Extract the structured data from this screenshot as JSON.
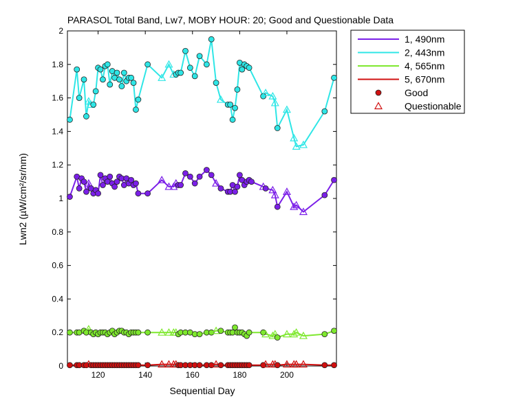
{
  "chart_data": {
    "type": "line",
    "title": "PARASOL Total Band, Lw7, MOBY HOUR: 20;  Good and Questionable Data",
    "xlabel": "Sequential Day",
    "ylabel": "Lwn2 (µW/cm²/sr/nm)",
    "xlim": [
      107,
      221
    ],
    "ylim": [
      0,
      2
    ],
    "xticks": [
      120,
      140,
      160,
      180,
      200
    ],
    "yticks": [
      0,
      0.2,
      0.4,
      0.6,
      0.8,
      1,
      1.2,
      1.4,
      1.6,
      1.8,
      2
    ],
    "grid": false,
    "legend_position": "outside-top-right",
    "legend": {
      "good_label": "Good",
      "questionable_label": "Questionable"
    },
    "series": [
      {
        "name": "1, 490nm",
        "color": "#7b1fe8",
        "x": [
          108,
          111,
          112,
          113,
          114,
          115,
          116,
          117,
          118,
          119,
          120,
          121,
          122,
          123,
          124,
          125,
          126,
          127,
          128,
          129,
          130,
          131,
          132,
          133,
          134,
          135,
          136,
          137,
          141,
          147,
          150,
          152,
          153,
          154,
          155,
          157,
          159,
          161,
          163,
          166,
          168,
          170,
          172,
          175,
          176,
          177,
          178,
          179,
          180,
          181,
          182,
          183,
          184,
          185,
          190,
          191,
          194,
          195,
          196,
          200,
          203,
          204,
          207,
          216,
          220
        ],
        "y": [
          1.01,
          1.13,
          1.06,
          1.12,
          1.1,
          1.04,
          1.09,
          1.06,
          1.03,
          1.05,
          1.03,
          1.14,
          1.08,
          1.12,
          1.1,
          1.13,
          1.09,
          1.07,
          1.1,
          1.13,
          1.12,
          1.08,
          1.12,
          1.09,
          1.11,
          1.08,
          1.09,
          1.03,
          1.03,
          1.11,
          1.07,
          1.07,
          1.09,
          1.08,
          1.08,
          1.15,
          1.13,
          1.09,
          1.13,
          1.17,
          1.14,
          1.09,
          1.06,
          1.04,
          1.04,
          1.08,
          1.04,
          1.07,
          1.14,
          1.11,
          1.08,
          1.1,
          1.11,
          1.1,
          1.07,
          1.06,
          1.05,
          1.02,
          0.95,
          1.04,
          0.95,
          0.96,
          0.92,
          1.02,
          1.11
        ],
        "q": [
          0,
          0,
          0,
          0,
          0,
          0,
          1,
          0,
          0,
          0,
          0,
          0,
          0,
          0,
          0,
          0,
          0,
          0,
          0,
          0,
          0,
          0,
          0,
          0,
          0,
          0,
          0,
          0,
          0,
          1,
          1,
          1,
          1,
          0,
          0,
          0,
          0,
          0,
          0,
          0,
          0,
          1,
          0,
          0,
          0,
          0,
          0,
          0,
          0,
          0,
          0,
          0,
          0,
          0,
          1,
          0,
          1,
          1,
          0,
          1,
          1,
          1,
          1,
          0,
          0
        ]
      },
      {
        "name": "2, 443nm",
        "color": "#2ee6e6",
        "x": [
          108,
          111,
          112,
          114,
          115,
          116,
          117,
          118,
          119,
          120,
          121,
          122,
          123,
          124,
          125,
          126,
          127,
          128,
          129,
          130,
          131,
          132,
          133,
          134,
          135,
          136,
          137,
          141,
          147,
          150,
          152,
          153,
          154,
          155,
          157,
          159,
          161,
          163,
          166,
          168,
          170,
          172,
          175,
          176,
          177,
          178,
          179,
          180,
          181,
          182,
          183,
          184,
          190,
          191,
          194,
          195,
          196,
          200,
          203,
          204,
          207,
          216,
          220
        ],
        "y": [
          1.47,
          1.77,
          1.6,
          1.71,
          1.49,
          1.58,
          1.56,
          1.56,
          1.64,
          1.78,
          1.77,
          1.71,
          1.79,
          1.8,
          1.68,
          1.76,
          1.72,
          1.75,
          1.71,
          1.67,
          1.75,
          1.7,
          1.72,
          1.72,
          1.69,
          1.53,
          1.59,
          1.8,
          1.72,
          1.8,
          1.74,
          1.74,
          1.75,
          1.75,
          1.88,
          1.78,
          1.73,
          1.85,
          1.8,
          1.95,
          1.69,
          1.59,
          1.56,
          1.56,
          1.47,
          1.54,
          1.65,
          1.81,
          1.77,
          1.8,
          1.79,
          1.78,
          1.61,
          1.63,
          1.61,
          1.57,
          1.42,
          1.53,
          1.36,
          1.31,
          1.32,
          1.52,
          1.72
        ],
        "q": [
          0,
          0,
          0,
          0,
          0,
          1,
          1,
          0,
          0,
          0,
          0,
          0,
          0,
          0,
          0,
          0,
          0,
          0,
          0,
          0,
          0,
          0,
          0,
          0,
          0,
          0,
          0,
          0,
          1,
          1,
          1,
          0,
          0,
          0,
          0,
          0,
          0,
          0,
          0,
          0,
          0,
          1,
          0,
          0,
          0,
          0,
          0,
          0,
          0,
          0,
          0,
          0,
          0,
          1,
          1,
          1,
          0,
          1,
          1,
          1,
          1,
          0,
          0
        ]
      },
      {
        "name": "4, 565nm",
        "color": "#7ee82e",
        "x": [
          108,
          111,
          112,
          114,
          115,
          116,
          117,
          118,
          119,
          120,
          121,
          122,
          123,
          124,
          125,
          126,
          127,
          128,
          129,
          130,
          131,
          132,
          133,
          134,
          135,
          136,
          137,
          141,
          147,
          150,
          152,
          153,
          154,
          155,
          157,
          159,
          161,
          163,
          166,
          168,
          170,
          172,
          175,
          176,
          177,
          178,
          179,
          180,
          181,
          182,
          183,
          184,
          190,
          191,
          194,
          195,
          196,
          200,
          203,
          204,
          207,
          216,
          220
        ],
        "y": [
          0.2,
          0.2,
          0.2,
          0.21,
          0.2,
          0.22,
          0.2,
          0.19,
          0.2,
          0.19,
          0.2,
          0.2,
          0.2,
          0.19,
          0.2,
          0.21,
          0.19,
          0.2,
          0.21,
          0.21,
          0.2,
          0.2,
          0.19,
          0.2,
          0.2,
          0.2,
          0.2,
          0.2,
          0.2,
          0.2,
          0.2,
          0.2,
          0.19,
          0.2,
          0.2,
          0.2,
          0.19,
          0.19,
          0.2,
          0.2,
          0.21,
          0.21,
          0.2,
          0.2,
          0.2,
          0.23,
          0.2,
          0.2,
          0.2,
          0.19,
          0.18,
          0.2,
          0.2,
          0.19,
          0.18,
          0.19,
          0.17,
          0.19,
          0.19,
          0.2,
          0.18,
          0.19,
          0.21
        ],
        "q": [
          0,
          0,
          0,
          0,
          0,
          1,
          0,
          0,
          0,
          0,
          0,
          0,
          0,
          0,
          0,
          0,
          0,
          0,
          0,
          0,
          0,
          0,
          0,
          0,
          0,
          0,
          0,
          0,
          1,
          1,
          1,
          1,
          0,
          0,
          0,
          0,
          0,
          0,
          0,
          0,
          1,
          0,
          0,
          0,
          0,
          0,
          0,
          0,
          0,
          0,
          0,
          0,
          0,
          1,
          1,
          1,
          0,
          1,
          1,
          1,
          1,
          0,
          0
        ]
      },
      {
        "name": "5, 670nm",
        "color": "#d01010",
        "x": [
          108,
          111,
          112,
          114,
          115,
          116,
          117,
          118,
          119,
          120,
          121,
          122,
          123,
          124,
          125,
          126,
          127,
          128,
          129,
          130,
          131,
          132,
          133,
          134,
          135,
          136,
          137,
          141,
          147,
          150,
          152,
          153,
          154,
          155,
          157,
          159,
          161,
          163,
          166,
          168,
          170,
          172,
          175,
          176,
          177,
          178,
          179,
          180,
          181,
          182,
          183,
          184,
          190,
          191,
          194,
          195,
          196,
          200,
          203,
          204,
          207,
          216,
          220
        ],
        "y": [
          0.005,
          0.005,
          0.005,
          0.005,
          0.005,
          0.01,
          0.005,
          0.005,
          0.005,
          0.005,
          0.005,
          0.005,
          0.005,
          0.005,
          0.005,
          0.005,
          0.005,
          0.005,
          0.005,
          0.005,
          0.005,
          0.005,
          0.005,
          0.005,
          0.005,
          0.005,
          0.005,
          0.005,
          0.01,
          0.01,
          0.01,
          0.01,
          0.005,
          0.005,
          0.005,
          0.005,
          0.005,
          0.005,
          0.005,
          0.005,
          0.01,
          0.005,
          0.005,
          0.005,
          0.005,
          0.005,
          0.005,
          0.005,
          0.005,
          0.005,
          0.005,
          0.005,
          0.005,
          0.01,
          0.01,
          0.01,
          0.005,
          0.01,
          0.01,
          0.01,
          0.01,
          0.005,
          0.005
        ],
        "q": [
          0,
          0,
          0,
          0,
          0,
          1,
          0,
          0,
          0,
          0,
          0,
          0,
          0,
          0,
          0,
          0,
          0,
          0,
          0,
          0,
          0,
          0,
          0,
          0,
          0,
          0,
          0,
          0,
          1,
          1,
          1,
          1,
          0,
          0,
          0,
          0,
          0,
          0,
          0,
          0,
          1,
          0,
          0,
          0,
          0,
          0,
          0,
          0,
          0,
          0,
          0,
          0,
          0,
          1,
          1,
          1,
          0,
          1,
          1,
          1,
          1,
          0,
          0
        ]
      }
    ]
  }
}
